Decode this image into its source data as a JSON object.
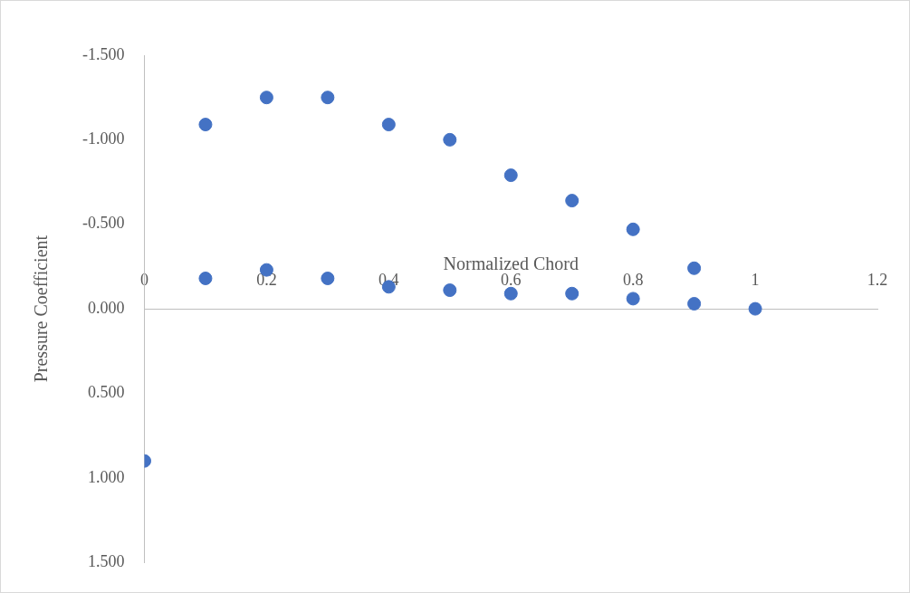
{
  "chart_data": {
    "type": "scatter",
    "xlabel": "Normalized Chord",
    "ylabel": "Pressure Coefficient",
    "series": [
      {
        "color": "#4472c4",
        "x": [
          0,
          0.1,
          0.2,
          0.3,
          0.4,
          0.5,
          0.6,
          0.7,
          0.8,
          0.9,
          0.1,
          0.2,
          0.3,
          0.4,
          0.5,
          0.6,
          0.7,
          0.8,
          0.9,
          1.0
        ],
        "values": [
          0.9,
          -1.09,
          -1.25,
          -1.25,
          -1.09,
          -1.0,
          -0.79,
          -0.64,
          -0.47,
          -0.24,
          -0.18,
          -0.23,
          -0.18,
          -0.13,
          -0.11,
          -0.09,
          -0.09,
          -0.06,
          -0.03,
          0
        ]
      }
    ],
    "xlim": [
      0,
      1.2
    ],
    "xticks": [
      0,
      0.2,
      0.4,
      0.6,
      0.8,
      1,
      1.2
    ],
    "ylim": [
      1.5,
      -1.5
    ],
    "yticks": [
      {
        "value": -1.5,
        "label": "-1.500"
      },
      {
        "value": -1,
        "label": "-1.000"
      },
      {
        "value": -0.5,
        "label": "-0.500"
      },
      {
        "value": 0,
        "label": "0.000"
      },
      {
        "value": 0.5,
        "label": "0.500"
      },
      {
        "value": 1,
        "label": "1.000"
      },
      {
        "value": 1.5,
        "label": "1.500"
      }
    ],
    "grid": false,
    "legend": false,
    "marker": "circle"
  }
}
